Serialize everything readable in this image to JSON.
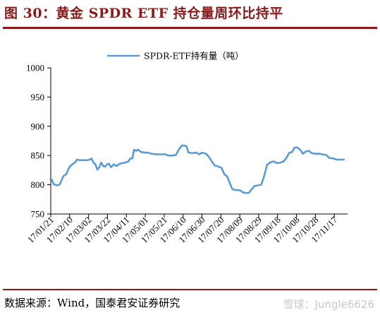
{
  "figure": {
    "title": "图 30：黄金 SPDR ETF 持仓量周环比持平",
    "source": "数据来源：Wind，国泰君安证券研究",
    "watermark": "雪球：Jungle6626"
  },
  "chart_data": {
    "type": "line",
    "title": "",
    "xlabel": "",
    "ylabel": "",
    "ylim": [
      750,
      1000
    ],
    "yticks": [
      750,
      800,
      850,
      900,
      950,
      1000
    ],
    "xticks": [
      "17/01/21",
      "17/02/10",
      "17/03/02",
      "17/03/22",
      "17/04/11",
      "17/05/01",
      "17/05/21",
      "17/06/10",
      "17/06/30",
      "17/07/20",
      "17/08/09",
      "17/08/29",
      "17/09/18",
      "17/10/08",
      "17/10/28",
      "17/11/17"
    ],
    "xlim": [
      "2017-01-21",
      "2017-11-23"
    ],
    "grid": false,
    "legend": "top-center",
    "colors": {
      "line": "#5b9bd5",
      "axis": "#000000",
      "title": "#8b1a1a"
    },
    "series": [
      {
        "name": "SPDR-ETF持有量（吨）",
        "points": [
          [
            "2017-01-20",
            810
          ],
          [
            "2017-01-22",
            809
          ],
          [
            "2017-01-24",
            801
          ],
          [
            "2017-01-27",
            799
          ],
          [
            "2017-01-30",
            800
          ],
          [
            "2017-02-01",
            807
          ],
          [
            "2017-02-03",
            815
          ],
          [
            "2017-02-06",
            818
          ],
          [
            "2017-02-08",
            826
          ],
          [
            "2017-02-10",
            832
          ],
          [
            "2017-02-13",
            836
          ],
          [
            "2017-02-15",
            838
          ],
          [
            "2017-02-17",
            843
          ],
          [
            "2017-02-20",
            842
          ],
          [
            "2017-02-24",
            842
          ],
          [
            "2017-02-28",
            842
          ],
          [
            "2017-03-02",
            843
          ],
          [
            "2017-03-04",
            845
          ],
          [
            "2017-03-06",
            838
          ],
          [
            "2017-03-08",
            835
          ],
          [
            "2017-03-10",
            826
          ],
          [
            "2017-03-12",
            830
          ],
          [
            "2017-03-14",
            838
          ],
          [
            "2017-03-16",
            832
          ],
          [
            "2017-03-18",
            831
          ],
          [
            "2017-03-20",
            835
          ],
          [
            "2017-03-22",
            836
          ],
          [
            "2017-03-24",
            830
          ],
          [
            "2017-03-27",
            835
          ],
          [
            "2017-03-30",
            832
          ],
          [
            "2017-04-02",
            836
          ],
          [
            "2017-04-05",
            837
          ],
          [
            "2017-04-08",
            838
          ],
          [
            "2017-04-11",
            840
          ],
          [
            "2017-04-13",
            845
          ],
          [
            "2017-04-15",
            845
          ],
          [
            "2017-04-17",
            860
          ],
          [
            "2017-04-19",
            858
          ],
          [
            "2017-04-21",
            860
          ],
          [
            "2017-04-24",
            856
          ],
          [
            "2017-04-28",
            855
          ],
          [
            "2017-05-01",
            855
          ],
          [
            "2017-05-05",
            853
          ],
          [
            "2017-05-10",
            852
          ],
          [
            "2017-05-15",
            852
          ],
          [
            "2017-05-19",
            852
          ],
          [
            "2017-05-22",
            850
          ],
          [
            "2017-05-26",
            850
          ],
          [
            "2017-05-30",
            851
          ],
          [
            "2017-06-02",
            860
          ],
          [
            "2017-06-05",
            867
          ],
          [
            "2017-06-08",
            867
          ],
          [
            "2017-06-10",
            866
          ],
          [
            "2017-06-12",
            855
          ],
          [
            "2017-06-16",
            854
          ],
          [
            "2017-06-20",
            855
          ],
          [
            "2017-06-23",
            852
          ],
          [
            "2017-06-26",
            855
          ],
          [
            "2017-06-30",
            853
          ],
          [
            "2017-07-03",
            848
          ],
          [
            "2017-07-06",
            840
          ],
          [
            "2017-07-09",
            833
          ],
          [
            "2017-07-13",
            831
          ],
          [
            "2017-07-16",
            829
          ],
          [
            "2017-07-19",
            818
          ],
          [
            "2017-07-22",
            814
          ],
          [
            "2017-07-24",
            805
          ],
          [
            "2017-07-27",
            793
          ],
          [
            "2017-07-30",
            791
          ],
          [
            "2017-08-02",
            791
          ],
          [
            "2017-08-05",
            790
          ],
          [
            "2017-08-07",
            787
          ],
          [
            "2017-08-10",
            786
          ],
          [
            "2017-08-13",
            786
          ],
          [
            "2017-08-16",
            792
          ],
          [
            "2017-08-19",
            798
          ],
          [
            "2017-08-23",
            799
          ],
          [
            "2017-08-26",
            800
          ],
          [
            "2017-08-29",
            815
          ],
          [
            "2017-09-01",
            834
          ],
          [
            "2017-09-04",
            838
          ],
          [
            "2017-09-08",
            840
          ],
          [
            "2017-09-11",
            837
          ],
          [
            "2017-09-15",
            838
          ],
          [
            "2017-09-18",
            840
          ],
          [
            "2017-09-21",
            846
          ],
          [
            "2017-09-24",
            855
          ],
          [
            "2017-09-27",
            856
          ],
          [
            "2017-09-29",
            863
          ],
          [
            "2017-10-02",
            864
          ],
          [
            "2017-10-05",
            860
          ],
          [
            "2017-10-08",
            853
          ],
          [
            "2017-10-11",
            857
          ],
          [
            "2017-10-14",
            858
          ],
          [
            "2017-10-17",
            854
          ],
          [
            "2017-10-21",
            853
          ],
          [
            "2017-10-25",
            853
          ],
          [
            "2017-10-28",
            852
          ],
          [
            "2017-11-01",
            851
          ],
          [
            "2017-11-04",
            846
          ],
          [
            "2017-11-08",
            845
          ],
          [
            "2017-11-12",
            843
          ],
          [
            "2017-11-16",
            843
          ],
          [
            "2017-11-20",
            843
          ]
        ]
      }
    ]
  }
}
